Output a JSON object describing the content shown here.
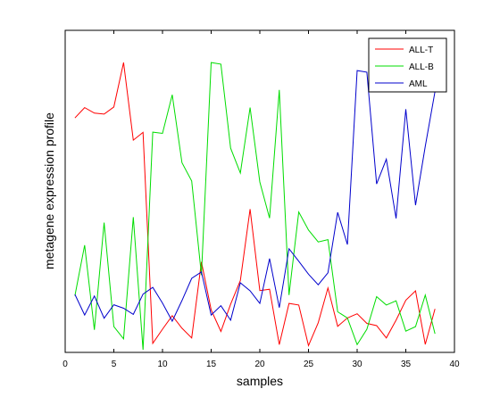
{
  "chart_data": {
    "type": "line",
    "title": "",
    "xlabel": "samples",
    "ylabel": "metagene expression profile",
    "xlim": [
      0,
      40
    ],
    "ylim": [
      0,
      1
    ],
    "xticks": [
      0,
      5,
      10,
      15,
      20,
      25,
      30,
      35,
      40
    ],
    "yticks_shown": false,
    "grid": false,
    "legend_position": "top-right",
    "x": [
      1,
      2,
      3,
      4,
      5,
      6,
      7,
      8,
      9,
      10,
      11,
      12,
      13,
      14,
      15,
      16,
      17,
      18,
      19,
      20,
      21,
      22,
      23,
      24,
      25,
      26,
      27,
      28,
      29,
      30,
      31,
      32,
      33,
      34,
      35,
      36,
      37,
      38
    ],
    "series": [
      {
        "name": "ALL-T",
        "color": "#ff0000",
        "values": [
          0.728,
          0.76,
          0.743,
          0.74,
          0.762,
          0.9,
          0.659,
          0.683,
          0.028,
          0.072,
          0.114,
          0.075,
          0.045,
          0.281,
          0.132,
          0.065,
          0.15,
          0.223,
          0.445,
          0.192,
          0.196,
          0.024,
          0.152,
          0.147,
          0.021,
          0.092,
          0.2,
          0.081,
          0.107,
          0.12,
          0.09,
          0.083,
          0.045,
          0.1,
          0.162,
          0.191,
          0.025,
          0.135
        ]
      },
      {
        "name": "ALL-B",
        "color": "#00dd00",
        "values": [
          0.176,
          0.333,
          0.07,
          0.403,
          0.08,
          0.042,
          0.42,
          0.008,
          0.684,
          0.68,
          0.8,
          0.589,
          0.532,
          0.24,
          0.9,
          0.895,
          0.634,
          0.557,
          0.76,
          0.529,
          0.417,
          0.815,
          0.178,
          0.436,
          0.38,
          0.343,
          0.35,
          0.126,
          0.107,
          0.024,
          0.072,
          0.173,
          0.147,
          0.16,
          0.066,
          0.08,
          0.178,
          0.058
        ]
      },
      {
        "name": "AML",
        "color": "#0000cc",
        "values": [
          0.18,
          0.116,
          0.175,
          0.106,
          0.148,
          0.137,
          0.118,
          0.181,
          0.202,
          0.153,
          0.097,
          0.161,
          0.23,
          0.25,
          0.116,
          0.145,
          0.1,
          0.216,
          0.191,
          0.152,
          0.291,
          0.139,
          0.322,
          0.283,
          0.243,
          0.21,
          0.247,
          0.435,
          0.335,
          0.875,
          0.87,
          0.523,
          0.6,
          0.416,
          0.755,
          0.457,
          0.64,
          0.81
        ]
      }
    ]
  }
}
